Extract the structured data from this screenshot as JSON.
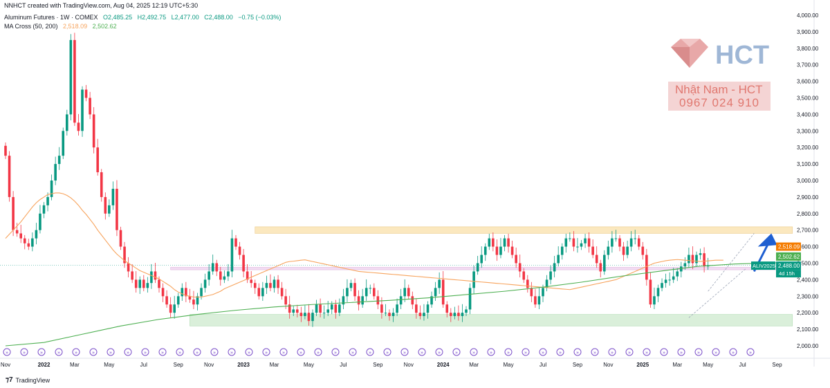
{
  "header": {
    "created": "NNHCT created with TradingView.com, Aug 04, 2025 12:19 UTC+5:30",
    "symbol": "Aluminum Futures · 1W · COMEX",
    "ohlc": {
      "o": "O2,485.25",
      "h": "H2,492.75",
      "l": "L2,477.00",
      "c": "C2,488.00",
      "chg": "−0.75 (−0.03%)"
    },
    "ma_label": "MA Cross (50, 200)",
    "ma_values": [
      "2,518.09",
      "2,502.62"
    ]
  },
  "watermark": {
    "logo": "HCT",
    "name": "Nhật Nam - HCT",
    "phone": "0967 024 910"
  },
  "footer": {
    "brand": "TradingView"
  },
  "colors": {
    "up": "#089981",
    "down": "#f23645",
    "ma50": "#f7a35c",
    "ma200": "#4caf50",
    "zone_top": "#fbe5b4",
    "zone_mid": "#f0d6f0",
    "zone_bot": "#d4edd4",
    "arrow": "#1f5fd1",
    "events": "#7b4fc9"
  },
  "chart_data": {
    "type": "candlestick",
    "title": "Aluminum Futures · 1W · COMEX",
    "ylim": [
      2000,
      4000
    ],
    "y_ticks": [
      "4,000.00",
      "3,900.00",
      "3,800.00",
      "3,700.00",
      "3,600.00",
      "3,500.00",
      "3,400.00",
      "3,300.00",
      "3,200.00",
      "3,100.00",
      "3,000.00",
      "2,900.00",
      "2,800.00",
      "2,700.00",
      "2,600.00",
      "2,500.00",
      "2,400.00",
      "2,300.00",
      "2,200.00",
      "2,100.00",
      "2,000.00"
    ],
    "x_ticks": [
      {
        "label": "Nov",
        "w": 0
      },
      {
        "label": "2022",
        "w": 10
      },
      {
        "label": "Mar",
        "w": 18
      },
      {
        "label": "May",
        "w": 27
      },
      {
        "label": "Jul",
        "w": 36
      },
      {
        "label": "Sep",
        "w": 45
      },
      {
        "label": "Nov",
        "w": 53
      },
      {
        "label": "2023",
        "w": 62
      },
      {
        "label": "Mar",
        "w": 70
      },
      {
        "label": "May",
        "w": 79
      },
      {
        "label": "Jul",
        "w": 88
      },
      {
        "label": "Sep",
        "w": 97
      },
      {
        "label": "Nov",
        "w": 105
      },
      {
        "label": "2024",
        "w": 114
      },
      {
        "label": "Mar",
        "w": 122
      },
      {
        "label": "May",
        "w": 131
      },
      {
        "label": "Jul",
        "w": 140
      },
      {
        "label": "Sep",
        "w": 149
      },
      {
        "label": "Nov",
        "w": 157
      },
      {
        "label": "2025",
        "w": 166
      },
      {
        "label": "Mar",
        "w": 175
      },
      {
        "label": "May",
        "w": 183
      },
      {
        "label": "Jul",
        "w": 192
      },
      {
        "label": "Sep",
        "w": 201
      }
    ],
    "closes": [
      3150,
      2900,
      2700,
      2680,
      2650,
      2620,
      2600,
      2650,
      2700,
      2800,
      2850,
      2900,
      3000,
      3100,
      3150,
      3300,
      3400,
      3850,
      3350,
      3300,
      3550,
      3500,
      3400,
      3200,
      3050,
      2900,
      2800,
      2850,
      2950,
      2700,
      2600,
      2500,
      2450,
      2400,
      2350,
      2400,
      2350,
      2380,
      2450,
      2400,
      2350,
      2300,
      2250,
      2200,
      2250,
      2300,
      2350,
      2300,
      2280,
      2250,
      2300,
      2350,
      2400,
      2450,
      2500,
      2450,
      2400,
      2420,
      2450,
      2650,
      2600,
      2550,
      2450,
      2400,
      2380,
      2350,
      2300,
      2350,
      2380,
      2350,
      2400,
      2350,
      2300,
      2250,
      2200,
      2220,
      2200,
      2180,
      2200,
      2150,
      2200,
      2250,
      2200,
      2200,
      2220,
      2250,
      2200,
      2250,
      2300,
      2350,
      2380,
      2300,
      2250,
      2300,
      2350,
      2350,
      2300,
      2250,
      2200,
      2200,
      2180,
      2200,
      2250,
      2300,
      2350,
      2300,
      2250,
      2200,
      2180,
      2200,
      2250,
      2300,
      2350,
      2400,
      2250,
      2200,
      2180,
      2200,
      2180,
      2200,
      2220,
      2350,
      2450,
      2500,
      2550,
      2600,
      2650,
      2600,
      2550,
      2600,
      2650,
      2600,
      2550,
      2500,
      2450,
      2400,
      2350,
      2300,
      2250,
      2300,
      2350,
      2400,
      2450,
      2500,
      2550,
      2600,
      2650,
      2650,
      2600,
      2600,
      2620,
      2650,
      2600,
      2550,
      2500,
      2450,
      2550,
      2600,
      2650,
      2650,
      2600,
      2550,
      2600,
      2650,
      2650,
      2600,
      2550,
      2400,
      2250,
      2300,
      2350,
      2380,
      2400,
      2400,
      2420,
      2450,
      2480,
      2500,
      2550,
      2500,
      2550,
      2560,
      2480,
      2488
    ],
    "ma50": [
      2650,
      2675,
      2700,
      2725,
      2750,
      2780,
      2810,
      2840,
      2865,
      2885,
      2900,
      2915,
      2920,
      2925,
      2925,
      2920,
      2910,
      2895,
      2875,
      2850,
      2820,
      2795,
      2765,
      2735,
      2700,
      2670,
      2640,
      2610,
      2580,
      2555,
      2535,
      2515,
      2500,
      2485,
      2470,
      2455,
      2445,
      2435,
      2425,
      2415,
      2405,
      2390,
      2375,
      2360,
      2340,
      2325,
      2315,
      2305,
      2300,
      2295,
      2295,
      2295,
      2300,
      2305,
      2310,
      2320,
      2330,
      2345,
      2355,
      2365,
      2375,
      2385,
      2395,
      2405,
      2415,
      2425,
      2435,
      2445,
      2455,
      2465,
      2475,
      2485,
      2495,
      2505,
      2510,
      2512,
      2515,
      2518,
      2520,
      2515,
      2510,
      2505,
      2500,
      2495,
      2490,
      2485,
      2480,
      2475,
      2470,
      2465,
      2460,
      2455,
      2450,
      2448,
      2446,
      2444,
      2442,
      2440,
      2438,
      2436,
      2434,
      2432,
      2430,
      2428,
      2426,
      2424,
      2422,
      2420,
      2418,
      2416,
      2414,
      2412,
      2410,
      2408,
      2406,
      2404,
      2402,
      2400,
      2398,
      2396,
      2394,
      2392,
      2390,
      2388,
      2386,
      2384,
      2382,
      2380,
      2378,
      2376,
      2374,
      2372,
      2370,
      2368,
      2366,
      2364,
      2362,
      2360,
      2358,
      2356,
      2354,
      2352,
      2350,
      2348,
      2346,
      2344,
      2342,
      2340,
      2345,
      2350,
      2355,
      2360,
      2365,
      2370,
      2375,
      2380,
      2385,
      2390,
      2395,
      2400,
      2410,
      2420,
      2430,
      2440,
      2450,
      2460,
      2470,
      2480,
      2490,
      2500,
      2505,
      2510,
      2515,
      2518,
      2520,
      2522,
      2520,
      2518,
      2516,
      2514,
      2512,
      2510,
      2512,
      2514,
      2516,
      2518,
      2518,
      2518
    ],
    "ma200_pts": [
      [
        0,
        2000
      ],
      [
        10,
        2020
      ],
      [
        20,
        2070
      ],
      [
        30,
        2120
      ],
      [
        40,
        2160
      ],
      [
        50,
        2190
      ],
      [
        60,
        2215
      ],
      [
        70,
        2235
      ],
      [
        80,
        2250
      ],
      [
        90,
        2262
      ],
      [
        100,
        2275
      ],
      [
        110,
        2290
      ],
      [
        120,
        2310
      ],
      [
        130,
        2330
      ],
      [
        140,
        2355
      ],
      [
        150,
        2385
      ],
      [
        160,
        2420
      ],
      [
        170,
        2450
      ],
      [
        180,
        2480
      ],
      [
        190,
        2495
      ],
      [
        201,
        2502.62
      ]
    ],
    "zones": [
      {
        "name": "resistance",
        "y1": 2680,
        "y2": 2720,
        "w1": 65,
        "w2": 205
      },
      {
        "name": "mid",
        "y1": 2460,
        "y2": 2475,
        "w1": 43,
        "w2": 203
      },
      {
        "name": "support",
        "y1": 2120,
        "y2": 2190,
        "w1": 48,
        "w2": 205
      }
    ],
    "last_price": "2,488.00",
    "symbol_tag": "ALIV2025",
    "countdown": "4d 15h",
    "ma50_last": "2,518.09",
    "ma200_last": "2,502.62"
  }
}
